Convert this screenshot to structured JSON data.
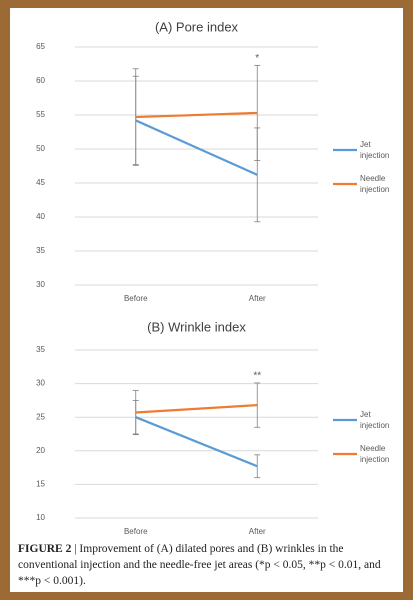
{
  "chart_data": [
    {
      "type": "line",
      "title": "(A) Pore index",
      "categories": [
        "Before",
        "After"
      ],
      "series": [
        {
          "name": "Jet injection",
          "color": "#5b9bd5",
          "values": [
            54.2,
            46.2
          ],
          "errors": [
            6.5,
            6.9
          ]
        },
        {
          "name": "Needle injection",
          "color": "#ed7d31",
          "values": [
            54.7,
            55.3
          ],
          "errors": [
            7.1,
            7.0
          ]
        }
      ],
      "ylim": [
        30,
        65
      ],
      "yticks": [
        30,
        35,
        40,
        45,
        50,
        55,
        60,
        65
      ],
      "grid": true,
      "legend": "right",
      "annotation": "*"
    },
    {
      "type": "line",
      "title": "(B) Wrinkle index",
      "categories": [
        "Before",
        "After"
      ],
      "series": [
        {
          "name": "Jet injection",
          "color": "#5b9bd5",
          "values": [
            25.0,
            17.7
          ],
          "errors": [
            2.5,
            1.7
          ]
        },
        {
          "name": "Needle injection",
          "color": "#ed7d31",
          "values": [
            25.7,
            26.8
          ],
          "errors": [
            3.3,
            3.3
          ]
        }
      ],
      "ylim": [
        10,
        35
      ],
      "yticks": [
        10,
        15,
        20,
        25,
        30,
        35
      ],
      "grid": true,
      "legend": "right",
      "annotation": "**"
    }
  ],
  "caption": {
    "label": "FIGURE 2",
    "separator": "|",
    "text": "Improvement of (A) dilated pores and (B) wrinkles in the conventional injection and the needle-free jet areas (*p < 0.05, **p < 0.01, and ***p < 0.001)."
  }
}
